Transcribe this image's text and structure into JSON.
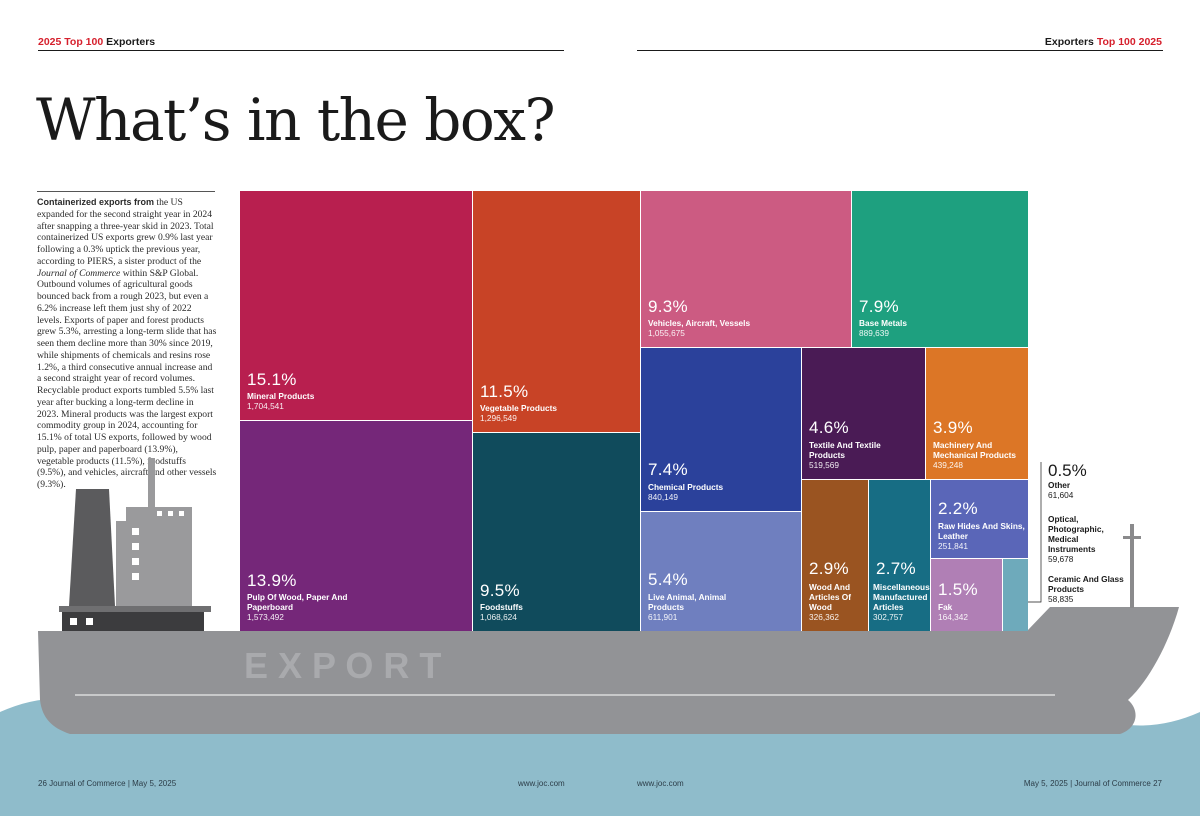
{
  "header": {
    "left_red": "2025 Top 100",
    "left_black": "Exporters",
    "right_black": "Exporters",
    "right_red": "Top 100 2025"
  },
  "title": "What’s in the box?",
  "intro": {
    "lead": "Containerized exports from",
    "p1": " the US expanded for the second straight year in 2024 after snapping a three-year skid in 2023. Total containerized US exports grew 0.9% last year following a 0.3% uptick the previous year, according to PIERS, a sister product of the ",
    "journal": "Journal of Commerce",
    "p2": " within S&P Global. Outbound volumes of agricultural goods bounced back from a rough 2023, but even a 6.2% increase left them just shy of 2022 levels. Exports of paper and forest products grew 5.3%, arresting a long-term slide that has seen them decline more than 30% since 2019, while shipments of chemicals and resins rose 1.2%, a third consecutive annual increase and a second straight year of record volumes. Recyclable product exports tumbled 5.5% last year after bucking a long-term decline in 2023. Mineral products was the largest export commodity group in 2024, accounting for 15.1% of total US exports, followed by wood pulp, paper and paperboard (13.9%), vegetable products (11.5%), foodstuffs (9.5%), and vehicles, aircraft and other vessels (9.3%)."
  },
  "hull_text": "E X P O R T",
  "colors": {
    "sea": "#8fbccb",
    "hull": "#929396",
    "hull_text": "#a9aaad",
    "funnel": "#5b5b5d",
    "superstructure": "#9a9a9c",
    "deck": "#6f6f71",
    "base": "#3c3c3e",
    "mast": "#8a8a8c"
  },
  "chart_data": {
    "type": "treemap",
    "unit": "TEU",
    "items": [
      {
        "pct": "15.1%",
        "label": "Mineral Products",
        "value": "1,704,541",
        "color": "#b81f4f"
      },
      {
        "pct": "13.9%",
        "label": "Pulp Of Wood, Paper And Paperboard",
        "value": "1,573,492",
        "color": "#752779"
      },
      {
        "pct": "11.5%",
        "label": "Vegetable Products",
        "value": "1,296,549",
        "color": "#c84326"
      },
      {
        "pct": "9.5%",
        "label": "Foodstuffs",
        "value": "1,068,624",
        "color": "#104b5c"
      },
      {
        "pct": "9.3%",
        "label": "Vehicles, Aircraft, Vessels",
        "value": "1,055,675",
        "color": "#cc5b82"
      },
      {
        "pct": "7.9%",
        "label": "Base Metals",
        "value": "889,639",
        "color": "#1ea07f"
      },
      {
        "pct": "7.4%",
        "label": "Chemical Products",
        "value": "840,149",
        "color": "#2b419b"
      },
      {
        "pct": "5.4%",
        "label": "Live Animal, Animal Products",
        "value": "611,901",
        "color": "#6f7fbf"
      },
      {
        "pct": "4.6%",
        "label": "Textile And Textile Products",
        "value": "519,569",
        "color": "#4a1b55"
      },
      {
        "pct": "3.9%",
        "label": "Machinery And Mechanical Products",
        "value": "439,248",
        "color": "#dc7626"
      },
      {
        "pct": "2.9%",
        "label": "Wood And Articles Of Wood",
        "value": "326,362",
        "color": "#9a5421"
      },
      {
        "pct": "2.7%",
        "label": "Miscellaneous Manufactured Articles",
        "value": "302,757",
        "color": "#176d84"
      },
      {
        "pct": "2.2%",
        "label": "Raw Hides And Skins, Leather",
        "value": "251,841",
        "color": "#5a66b8"
      },
      {
        "pct": "1.5%",
        "label": "Fak",
        "value": "164,342",
        "color": "#b07fb5"
      },
      {
        "pct": "0.5%",
        "label": "Other",
        "value": "61,604",
        "color": "#6eaabb"
      },
      {
        "pct": "",
        "label": "Optical, Photographic, Medical Instruments",
        "value": "59,678",
        "color": ""
      },
      {
        "pct": "",
        "label": "Ceramic And Glass Products",
        "value": "58,835",
        "color": ""
      }
    ]
  },
  "footer": {
    "left": "26   Journal of Commerce   |   May 5, 2025",
    "url_left": "www.joc.com",
    "url_right": "www.joc.com",
    "right": "May 5, 2025   |   Journal of Commerce   27"
  }
}
